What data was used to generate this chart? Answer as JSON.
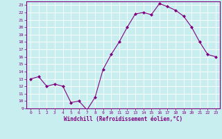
{
  "x": [
    0,
    1,
    2,
    3,
    4,
    5,
    6,
    7,
    8,
    9,
    10,
    11,
    12,
    13,
    14,
    15,
    16,
    17,
    18,
    19,
    20,
    21,
    22,
    23
  ],
  "y": [
    13,
    13.3,
    12,
    12.3,
    12,
    9.8,
    10,
    8.8,
    10.5,
    14.3,
    16.3,
    18,
    20,
    21.8,
    22,
    21.7,
    23.2,
    22.8,
    22.3,
    21.5,
    20,
    18,
    16.3,
    16
  ],
  "line_color": "#800080",
  "marker": "D",
  "marker_size": 2,
  "bg_color": "#c8eef0",
  "grid_color": "#ffffff",
  "xlabel": "Windchill (Refroidissement éolien,°C)",
  "xlabel_color": "#800080",
  "tick_color": "#800080",
  "ylim": [
    9,
    23.5
  ],
  "xlim": [
    -0.5,
    23.5
  ],
  "yticks": [
    9,
    10,
    11,
    12,
    13,
    14,
    15,
    16,
    17,
    18,
    19,
    20,
    21,
    22,
    23
  ],
  "xticks": [
    0,
    1,
    2,
    3,
    4,
    5,
    6,
    7,
    8,
    9,
    10,
    11,
    12,
    13,
    14,
    15,
    16,
    17,
    18,
    19,
    20,
    21,
    22,
    23
  ]
}
